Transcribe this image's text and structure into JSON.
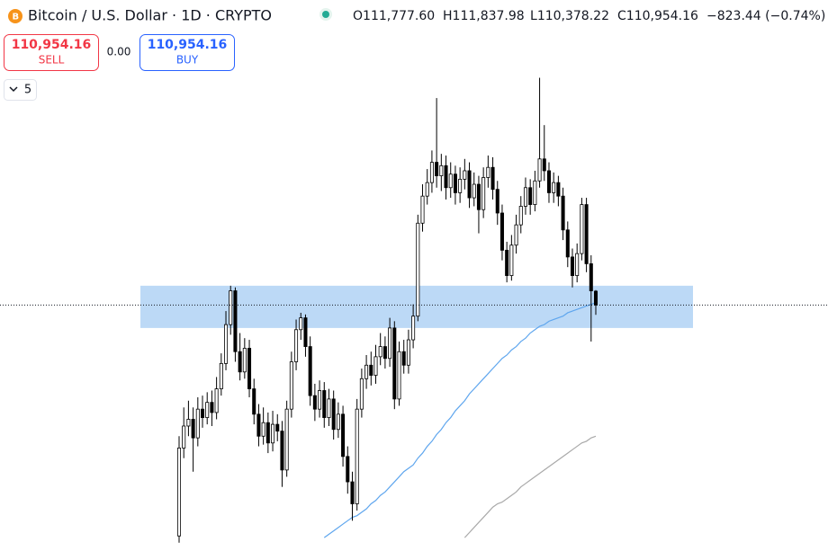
{
  "header": {
    "title": "Bitcoin / U.S. Dollar · 1D · CRYPTO",
    "ohlc": [
      {
        "label": "O",
        "value": "111,777.60"
      },
      {
        "label": "H",
        "value": "111,837.98"
      },
      {
        "label": "L",
        "value": "110,378.22"
      },
      {
        "label": "C",
        "value": "110,954.16"
      }
    ],
    "change": "−823.44 (−0.74%)"
  },
  "trade": {
    "sell_price": "110,954.16",
    "sell_label": "SELL",
    "spread": "0.00",
    "buy_price": "110,954.16",
    "buy_label": "BUY"
  },
  "indicators_count": "5",
  "chart_data": {
    "type": "candlestick",
    "ylim": [
      97100,
      129000
    ],
    "up_color": "#ffffff",
    "down_color": "#000000",
    "wick_color": "#000000",
    "open": [
      97300,
      102500,
      103800,
      104200,
      103100,
      104800,
      104300,
      105200,
      104600,
      106000,
      107500,
      109800,
      111800,
      108200,
      107000,
      108400,
      106000,
      104500,
      103200,
      104000,
      102800,
      103900,
      103500,
      101200,
      104800,
      107600,
      109500,
      110200,
      108500,
      105600,
      104800,
      105900,
      104300,
      105400,
      103600,
      104500,
      102000,
      100500,
      99200,
      104800,
      106600,
      107400,
      106800,
      107900,
      108500,
      107800,
      109600,
      105400,
      108200,
      107400,
      108900,
      110300,
      115800,
      117400,
      118200,
      119400,
      118600,
      119200,
      117900,
      118700,
      117600,
      118400,
      118900,
      117300,
      118100,
      116600,
      118500,
      119100,
      117800,
      116400,
      114200,
      112700,
      114500,
      115700,
      116800,
      117900,
      116900,
      118300,
      119600,
      118900,
      117600,
      118200,
      117400,
      115400,
      113800,
      112700,
      114000,
      116900,
      113400,
      111777.6
    ],
    "high": [
      103200,
      104900,
      105300,
      104900,
      105500,
      105600,
      105800,
      105900,
      106700,
      108100,
      110600,
      112100,
      112000,
      109300,
      109000,
      108900,
      106600,
      105100,
      104900,
      104600,
      104700,
      104500,
      104100,
      105300,
      108200,
      110100,
      110500,
      110400,
      109100,
      106300,
      106500,
      106400,
      106000,
      105900,
      105200,
      105000,
      102600,
      101100,
      105400,
      107200,
      108000,
      108200,
      108600,
      109300,
      109100,
      110200,
      110000,
      108800,
      108900,
      109500,
      111000,
      116300,
      118100,
      119000,
      120100,
      123200,
      119900,
      119800,
      119400,
      119200,
      119100,
      119600,
      119400,
      118800,
      118600,
      119100,
      119800,
      119700,
      118300,
      116900,
      114700,
      115100,
      116300,
      117400,
      118500,
      118400,
      118900,
      124400,
      121600,
      119400,
      118800,
      118600,
      117900,
      115900,
      114300,
      114600,
      117300,
      117300,
      113900,
      111837.98
    ],
    "low": [
      96900,
      101900,
      103200,
      101100,
      102600,
      103700,
      103900,
      103800,
      104200,
      105600,
      107100,
      109200,
      107600,
      106500,
      106600,
      105500,
      103900,
      102600,
      102700,
      102200,
      102300,
      102900,
      100200,
      100800,
      104300,
      107100,
      108900,
      107900,
      105000,
      104100,
      104300,
      103700,
      103800,
      103000,
      103100,
      101400,
      99800,
      98200,
      98800,
      104300,
      106000,
      106200,
      106300,
      107400,
      107200,
      107300,
      104800,
      105000,
      106900,
      106900,
      108400,
      110000,
      115300,
      116900,
      117600,
      117900,
      117700,
      117200,
      117300,
      116900,
      117000,
      117800,
      116700,
      116800,
      115200,
      116100,
      117900,
      117200,
      115700,
      113600,
      112300,
      112400,
      114000,
      115200,
      116300,
      116300,
      116500,
      117900,
      118300,
      117000,
      117000,
      116800,
      114800,
      113200,
      112000,
      112300,
      113600,
      112900,
      108800,
      110378.22
    ],
    "close": [
      102500,
      103800,
      104200,
      103100,
      104800,
      104300,
      105200,
      104600,
      106000,
      107500,
      109800,
      111800,
      108200,
      107000,
      108400,
      106000,
      104500,
      103200,
      104000,
      102800,
      103900,
      103500,
      101200,
      104800,
      107600,
      109500,
      110200,
      108500,
      105600,
      104800,
      105900,
      104300,
      105400,
      103600,
      104500,
      102000,
      100500,
      99200,
      104800,
      106600,
      107400,
      106800,
      107900,
      108500,
      107800,
      109600,
      105400,
      108200,
      107400,
      108900,
      110300,
      115800,
      117400,
      118200,
      119400,
      118600,
      119200,
      117900,
      118700,
      117600,
      118400,
      118900,
      117300,
      118100,
      116600,
      118500,
      119100,
      117800,
      116400,
      114200,
      112700,
      114500,
      115700,
      116800,
      117900,
      116900,
      118300,
      119600,
      118900,
      117600,
      118200,
      117400,
      115400,
      113800,
      112700,
      114000,
      116900,
      113400,
      111800,
      110954.16
    ],
    "series": [
      {
        "color": "#5fa6ee",
        "values": [
          null,
          null,
          null,
          null,
          null,
          null,
          null,
          null,
          null,
          null,
          null,
          null,
          null,
          null,
          null,
          null,
          null,
          null,
          null,
          null,
          null,
          null,
          null,
          null,
          null,
          null,
          null,
          null,
          null,
          null,
          null,
          97200,
          97400,
          97600,
          97800,
          98000,
          98200,
          98400,
          98500,
          98700,
          98900,
          99200,
          99400,
          99700,
          99900,
          100200,
          100500,
          100800,
          101100,
          101300,
          101500,
          101900,
          102200,
          102600,
          102900,
          103300,
          103600,
          104000,
          104300,
          104700,
          105000,
          105300,
          105700,
          106000,
          106300,
          106600,
          106900,
          107200,
          107500,
          107800,
          108000,
          108300,
          108500,
          108800,
          109000,
          109300,
          109500,
          109700,
          109800,
          110000,
          110100,
          110200,
          110300,
          110500,
          110600,
          110700,
          110800,
          110900,
          111000,
          111100
        ]
      },
      {
        "color": "#a9a9a9",
        "values": [
          null,
          null,
          null,
          null,
          null,
          null,
          null,
          null,
          null,
          null,
          null,
          null,
          null,
          null,
          null,
          null,
          null,
          null,
          null,
          null,
          null,
          null,
          null,
          null,
          null,
          null,
          null,
          null,
          null,
          null,
          null,
          null,
          null,
          null,
          null,
          null,
          null,
          null,
          null,
          null,
          null,
          null,
          null,
          null,
          null,
          null,
          null,
          null,
          null,
          null,
          null,
          null,
          null,
          null,
          null,
          null,
          null,
          null,
          null,
          null,
          null,
          97200,
          97500,
          97800,
          98100,
          98400,
          98700,
          99000,
          99200,
          99300,
          99500,
          99700,
          99900,
          100200,
          100400,
          100600,
          100800,
          101000,
          101200,
          101400,
          101600,
          101800,
          102000,
          102200,
          102400,
          102600,
          102800,
          102900,
          103100,
          103200
        ]
      }
    ],
    "zone": {
      "low": 109600,
      "high": 112100,
      "color": "#b5d5f5"
    }
  }
}
